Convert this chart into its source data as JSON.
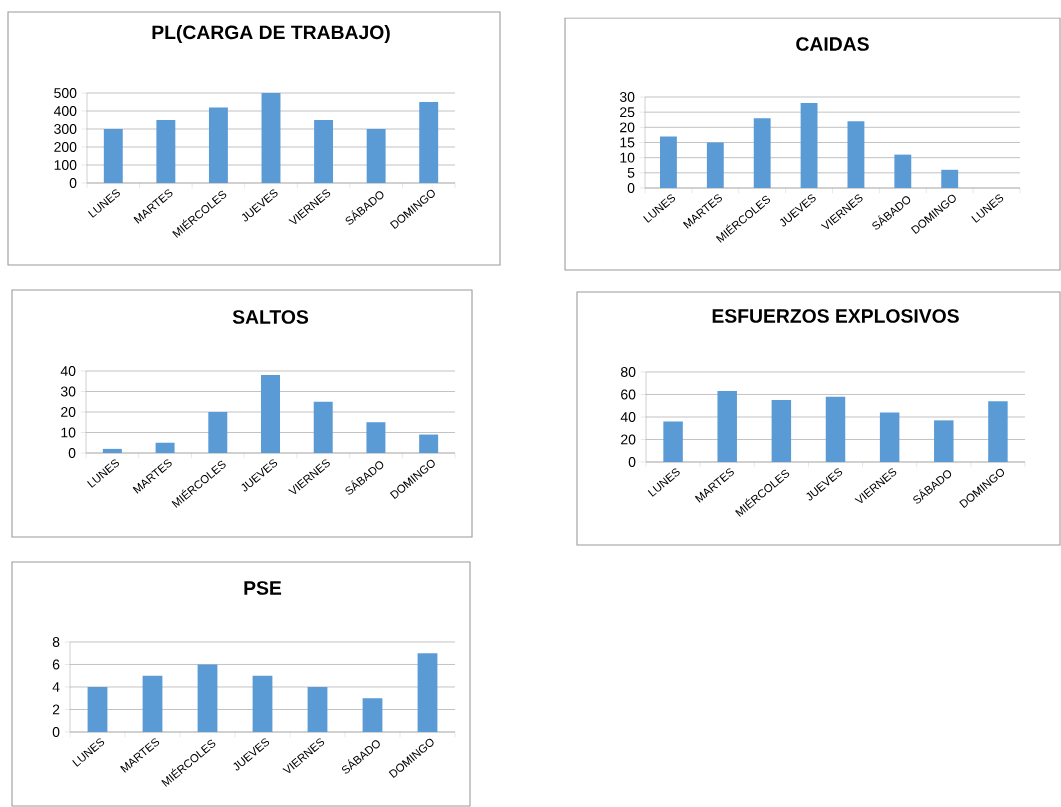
{
  "chart_data": [
    {
      "type": "bar",
      "title": "PL(CARGA DE TRABAJO)",
      "categories": [
        "LUNES",
        "MARTES",
        "MIÉRCOLES",
        "JUEVES",
        "VIERNES",
        "SÁBADO",
        "DOMINGO"
      ],
      "values": [
        300,
        350,
        420,
        500,
        350,
        300,
        450
      ],
      "color": "#5b9bd5",
      "ylim": [
        0,
        500
      ],
      "yticks": [
        0,
        100,
        200,
        300,
        400,
        500
      ],
      "grid": "y"
    },
    {
      "type": "bar",
      "title": "CAIDAS",
      "categories": [
        "LUNES",
        "MARTES",
        "MIÉRCOLES",
        "JUEVES",
        "VIERNES",
        "SÁBADO",
        "DOMINGO",
        "LUNES"
      ],
      "values": [
        17,
        15,
        23,
        28,
        22,
        11,
        6,
        null
      ],
      "color": "#5b9bd5",
      "ylim": [
        0,
        30
      ],
      "yticks": [
        0,
        5,
        10,
        15,
        20,
        25,
        30
      ],
      "grid": "y"
    },
    {
      "type": "bar",
      "title": "SALTOS",
      "categories": [
        "LUNES",
        "MARTES",
        "MIÉRCOLES",
        "JUEVES",
        "VIERNES",
        "SÁBADO",
        "DOMINGO"
      ],
      "values": [
        2,
        5,
        20,
        38,
        25,
        15,
        9
      ],
      "color": "#5b9bd5",
      "ylim": [
        0,
        40
      ],
      "yticks": [
        0,
        10,
        20,
        30,
        40
      ],
      "grid": "y"
    },
    {
      "type": "bar",
      "title": "ESFUERZOS EXPLOSIVOS",
      "categories": [
        "LUNES",
        "MARTES",
        "MIÉRCOLES",
        "JUEVES",
        "VIERNES",
        "SÁBADO",
        "DOMINGO"
      ],
      "values": [
        36,
        63,
        55,
        58,
        44,
        37,
        54
      ],
      "color": "#5b9bd5",
      "ylim": [
        0,
        80
      ],
      "yticks": [
        0,
        20,
        40,
        60,
        80
      ],
      "grid": "y"
    },
    {
      "type": "bar",
      "title": "PSE",
      "categories": [
        "LUNES",
        "MARTES",
        "MIÉRCOLES",
        "JUEVES",
        "VIERNES",
        "SÁBADO",
        "DOMINGO"
      ],
      "values": [
        4,
        5,
        6,
        5,
        4,
        3,
        7
      ],
      "color": "#5b9bd5",
      "ylim": [
        0,
        8
      ],
      "yticks": [
        0,
        2,
        4,
        6,
        8
      ],
      "grid": "y"
    }
  ]
}
